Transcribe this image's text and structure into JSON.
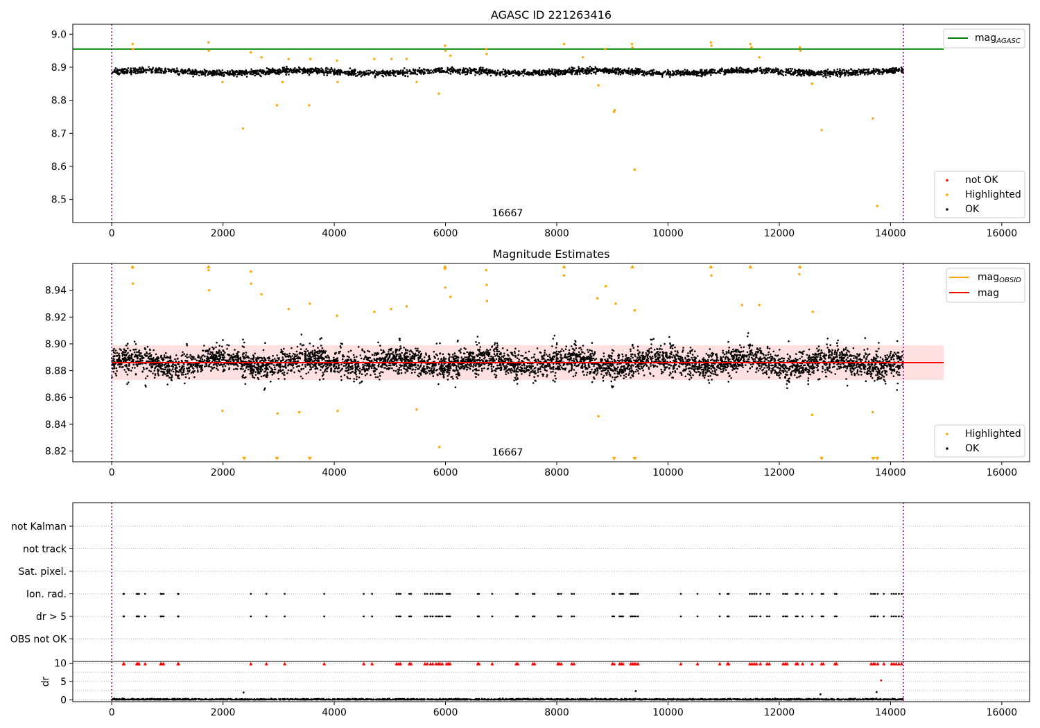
{
  "figure": {
    "title": "AGASC ID 221263416"
  },
  "chart_data": [
    {
      "type": "scatter",
      "panel": "top",
      "title": "",
      "xlabel": "",
      "ylabel": "",
      "xlim": [
        -700,
        16500
      ],
      "ylim": [
        8.43,
        9.03
      ],
      "xticks": [
        "0",
        "2000",
        "4000",
        "6000",
        "8000",
        "10000",
        "12000",
        "14000",
        "16000"
      ],
      "yticks": [
        "8.5",
        "8.6",
        "8.7",
        "8.8",
        "8.9",
        "9.0"
      ],
      "obsid_label": "16667",
      "obs_boundaries": [
        0,
        14230
      ],
      "reference_lines": [
        {
          "name": "mag_AGASC",
          "value": 8.955,
          "color": "#008000"
        }
      ],
      "series": [
        {
          "name": "not OK",
          "color": "#ff0000",
          "points": []
        },
        {
          "name": "Highlighted",
          "color": "#ffa500",
          "points": [
            [
              375,
              8.97
            ],
            [
              380,
              8.955
            ],
            [
              1740,
              8.975
            ],
            [
              1745,
              8.95
            ],
            [
              2500,
              8.945
            ],
            [
              2690,
              8.93
            ],
            [
              3180,
              8.925
            ],
            [
              3570,
              8.925
            ],
            [
              4050,
              8.92
            ],
            [
              4720,
              8.925
            ],
            [
              5030,
              8.925
            ],
            [
              5300,
              8.925
            ],
            [
              5990,
              8.965
            ],
            [
              6000,
              8.95
            ],
            [
              6090,
              8.935
            ],
            [
              6730,
              8.955
            ],
            [
              6740,
              8.94
            ],
            [
              8130,
              8.97
            ],
            [
              8470,
              8.93
            ],
            [
              8870,
              8.955
            ],
            [
              9350,
              8.97
            ],
            [
              9360,
              8.96
            ],
            [
              10770,
              8.975
            ],
            [
              10780,
              8.965
            ],
            [
              11480,
              8.97
            ],
            [
              11500,
              8.96
            ],
            [
              11640,
              8.93
            ],
            [
              12370,
              8.96
            ],
            [
              12380,
              8.95
            ],
            [
              2360,
              8.715
            ],
            [
              2970,
              8.785
            ],
            [
              3550,
              8.785
            ],
            [
              5880,
              8.82
            ],
            [
              9030,
              8.765
            ],
            [
              9040,
              8.77
            ],
            [
              9400,
              8.59
            ],
            [
              12760,
              8.71
            ],
            [
              13680,
              8.745
            ],
            [
              13760,
              8.48
            ],
            [
              1990,
              8.855
            ],
            [
              3070,
              8.855
            ],
            [
              4060,
              8.855
            ],
            [
              5480,
              8.855
            ],
            [
              8750,
              8.845
            ],
            [
              12590,
              8.85
            ]
          ]
        },
        {
          "name": "OK",
          "color": "#000000",
          "points": "dense band, 0–14230, mag ≈ 8.857–8.915"
        }
      ],
      "legend": [
        {
          "label": "mag",
          "sub": "AGASC",
          "placement": "top-right",
          "color": "#008000",
          "marker": "line"
        },
        {
          "label": "not OK",
          "placement": "bottom-right",
          "color": "#ff0000",
          "marker": "dot"
        },
        {
          "label": "Highlighted",
          "placement": "bottom-right",
          "color": "#ffa500",
          "marker": "dot"
        },
        {
          "label": "OK",
          "placement": "bottom-right",
          "color": "#000000",
          "marker": "dot"
        }
      ]
    },
    {
      "type": "scatter",
      "panel": "middle",
      "title": "Magnitude Estimates",
      "xlabel": "",
      "ylabel": "",
      "xlim": [
        -700,
        16500
      ],
      "ylim": [
        8.812,
        8.96
      ],
      "xticks": [
        "0",
        "2000",
        "4000",
        "6000",
        "8000",
        "10000",
        "12000",
        "14000",
        "16000"
      ],
      "yticks": [
        "8.82",
        "8.84",
        "8.86",
        "8.88",
        "8.90",
        "8.92",
        "8.94"
      ],
      "obsid_label": "16667",
      "obs_boundaries": [
        0,
        14230
      ],
      "reference_lines": [
        {
          "name": "mag",
          "value": 8.886,
          "color": "#ff0000",
          "band": [
            8.873,
            8.899
          ]
        },
        {
          "name": "mag_OBSID",
          "value": 8.886,
          "color": "#ffa500",
          "range": [
            0,
            14230
          ]
        }
      ],
      "series": [
        {
          "name": "Highlighted",
          "color": "#ffa500",
          "points": [
            [
              375,
              8.957
            ],
            [
              380,
              8.945
            ],
            [
              1740,
              8.955
            ],
            [
              1750,
              8.94
            ],
            [
              2500,
              8.954
            ],
            [
              2505,
              8.945
            ],
            [
              2690,
              8.937
            ],
            [
              3180,
              8.926
            ],
            [
              3560,
              8.93
            ],
            [
              4050,
              8.921
            ],
            [
              4720,
              8.924
            ],
            [
              5020,
              8.926
            ],
            [
              5300,
              8.928
            ],
            [
              5990,
              8.956
            ],
            [
              5995,
              8.942
            ],
            [
              6090,
              8.935
            ],
            [
              6730,
              8.955
            ],
            [
              6740,
              8.944
            ],
            [
              6745,
              8.932
            ],
            [
              8130,
              8.951
            ],
            [
              8730,
              8.934
            ],
            [
              8880,
              8.943
            ],
            [
              9060,
              8.93
            ],
            [
              9400,
              8.925
            ],
            [
              10780,
              8.951
            ],
            [
              11330,
              8.929
            ],
            [
              11640,
              8.929
            ],
            [
              12360,
              8.952
            ],
            [
              12600,
              8.924
            ],
            [
              1990,
              8.85
            ],
            [
              2980,
              8.848
            ],
            [
              3370,
              8.849
            ],
            [
              4060,
              8.85
            ],
            [
              5480,
              8.851
            ],
            [
              8750,
              8.846
            ],
            [
              12590,
              8.847
            ],
            [
              13680,
              8.849
            ],
            [
              5890,
              8.823
            ]
          ]
        },
        {
          "name": "Highlighted (below range)",
          "color": "#ffa500",
          "marker": "triangle-down",
          "x": [
            2380,
            2970,
            3560,
            9030,
            9400,
            12760,
            13690,
            13760
          ]
        },
        {
          "name": "Highlighted (above range)",
          "color": "#ffa500",
          "marker": "triangle-up",
          "x": [
            375,
            1740,
            5990,
            8130,
            9360,
            10770,
            11480,
            12370
          ]
        },
        {
          "name": "OK",
          "color": "#000000",
          "points": "dense band, 0–14230, mag ≈ 8.85–8.92"
        }
      ],
      "legend": [
        {
          "label": "mag",
          "sub": "OBSID",
          "placement": "top-right",
          "color": "#ffa500",
          "marker": "line"
        },
        {
          "label": "mag",
          "placement": "top-right",
          "color": "#ff0000",
          "marker": "line"
        },
        {
          "label": "Highlighted",
          "placement": "bottom-right",
          "color": "#ffa500",
          "marker": "dot"
        },
        {
          "label": "OK",
          "placement": "bottom-right",
          "color": "#000000",
          "marker": "dot"
        }
      ]
    },
    {
      "type": "scatter",
      "panel": "flags",
      "title": "",
      "xlim": [
        -700,
        16500
      ],
      "categories": [
        "not Kalman",
        "not track",
        "Sat. pixel.",
        "Ion. rad.",
        "dr > 5",
        "OBS not OK"
      ],
      "obs_boundaries": [
        0,
        14230
      ],
      "flag_times": [
        210,
        220,
        450,
        470,
        490,
        600,
        880,
        900,
        930,
        1190,
        1200,
        2500,
        2780,
        3110,
        3820,
        4530,
        4680,
        5120,
        5160,
        5190,
        5350,
        5380,
        5630,
        5670,
        5730,
        5770,
        5830,
        5870,
        5900,
        5940,
        6020,
        6050,
        6080,
        6580,
        6600,
        6840,
        7270,
        7300,
        7570,
        7600,
        8020,
        8040,
        8080,
        8270,
        8310,
        9000,
        9030,
        9130,
        9160,
        9190,
        9330,
        9360,
        9390,
        9420,
        9460,
        10230,
        10530,
        10930,
        11070,
        11090,
        11470,
        11510,
        11550,
        11590,
        11660,
        11780,
        11820,
        12070,
        12110,
        12140,
        12300,
        12330,
        12420,
        12590,
        12760,
        12790,
        13000,
        13030,
        13650,
        13690,
        13720,
        13770,
        13880,
        14020,
        14060,
        14100,
        14150,
        14200
      ]
    },
    {
      "type": "scatter",
      "panel": "dr",
      "title": "",
      "ylabel": "dr",
      "xlim": [
        -700,
        16500
      ],
      "ylim": [
        -0.5,
        10.5
      ],
      "xticks": [
        "0",
        "2000",
        "4000",
        "6000",
        "8000",
        "10000",
        "12000",
        "14000",
        "16000"
      ],
      "yticks": [
        "0",
        "5",
        "10"
      ],
      "obs_boundaries": [
        0,
        14230
      ],
      "clipped_marker": {
        "value": 10,
        "color": "#ff0000",
        "marker": "triangle"
      },
      "series": [
        {
          "name": "dr",
          "color": "#000000",
          "points": "dense band, 0–14230, dr ≈ 0–0.8"
        },
        {
          "name": "dr outliers",
          "color": "#000000",
          "points": [
            [
              2370,
              2.0
            ],
            [
              9420,
              2.4
            ],
            [
              13750,
              2.1
            ],
            [
              12740,
              1.5
            ],
            [
              13830,
              5.3
            ]
          ]
        }
      ]
    }
  ]
}
